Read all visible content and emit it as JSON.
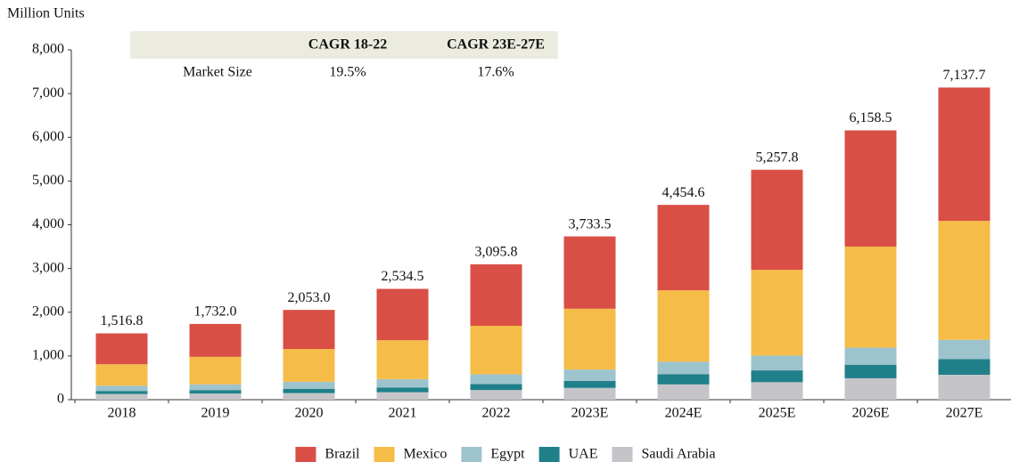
{
  "chart_data": {
    "type": "stacked_bar",
    "y_label": "Million Units",
    "categories": [
      "2018",
      "2019",
      "2020",
      "2021",
      "2022",
      "2023E",
      "2024E",
      "2025E",
      "2026E",
      "2027E"
    ],
    "series": [
      {
        "name": "Saudi Arabia",
        "color": "#c5c5c9",
        "values": [
          130,
          140,
          150,
          170,
          220,
          270,
          350,
          400,
          490,
          570
        ]
      },
      {
        "name": "UAE",
        "color": "#20808a",
        "values": [
          70,
          80,
          100,
          110,
          140,
          160,
          230,
          270,
          310,
          360
        ]
      },
      {
        "name": "Egypt",
        "color": "#9dc3cd",
        "values": [
          120,
          130,
          160,
          190,
          220,
          260,
          290,
          340,
          390,
          440
        ]
      },
      {
        "name": "Mexico",
        "color": "#f6bc48",
        "values": [
          490,
          630,
          750,
          890,
          1110,
          1390,
          1630,
          1960,
          2310,
          2720
        ]
      },
      {
        "name": "Brazil",
        "color": "#d94f45",
        "values": [
          706.8,
          752.0,
          893.0,
          1174.5,
          1405.8,
          1653.5,
          1954.6,
          2287.8,
          2658.5,
          3047.7
        ]
      }
    ],
    "legend_order": [
      4,
      3,
      2,
      1,
      0
    ],
    "totals": [
      1516.8,
      1732.0,
      2053.0,
      2534.5,
      3095.8,
      3733.5,
      4454.6,
      5257.8,
      6158.5,
      7137.7
    ],
    "total_labels": [
      "1,516.8",
      "1,732.0",
      "2,053.0",
      "2,534.5",
      "3,095.8",
      "3,733.5",
      "4,454.6",
      "5,257.8",
      "6,158.5",
      "7,137.7"
    ],
    "ylim": [
      0,
      8000
    ],
    "yticks": [
      0,
      {
        "value": 1000,
        "label": "1,000"
      },
      {
        "value": 2000,
        "label": "2,000"
      },
      {
        "value": 3000,
        "label": "3,000"
      },
      {
        "value": 4000,
        "label": "4,000"
      },
      {
        "value": 5000,
        "label": "5,000"
      },
      {
        "value": 6000,
        "label": "6,000"
      },
      {
        "value": 7000,
        "label": "7,000"
      },
      {
        "value": 8000,
        "label": "8,000"
      }
    ],
    "table": {
      "header": [
        "CAGR 18-22",
        "CAGR 23E-27E"
      ],
      "row_label": "Market Size",
      "row": [
        "19.5%",
        "17.6%"
      ]
    }
  }
}
